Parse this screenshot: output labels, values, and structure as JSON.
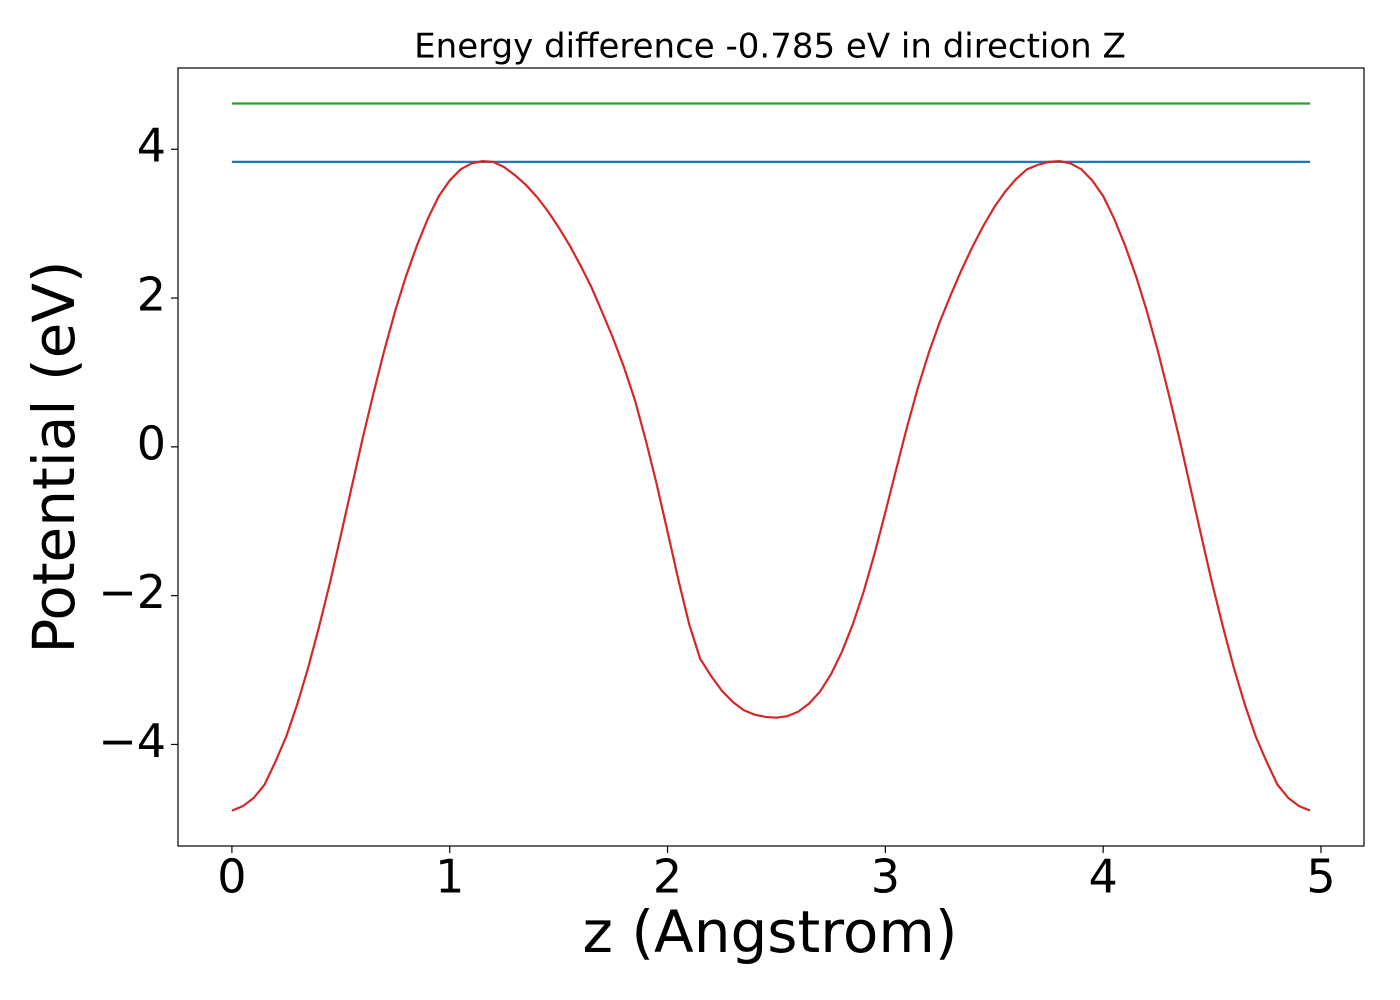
{
  "chart_data": {
    "type": "line",
    "title": "Energy difference -0.785 eV in direction Z",
    "xlabel": "z (Angstrom)",
    "ylabel": "Potential (eV)",
    "xlim": [
      -0.2475,
      5.1975
    ],
    "ylim": [
      -5.365,
      5.092
    ],
    "xticks": [
      0,
      1,
      2,
      3,
      4,
      5
    ],
    "yticks": [
      {
        "value": -4,
        "label": "−4"
      },
      {
        "value": -2,
        "label": "−2"
      },
      0,
      2,
      4
    ],
    "series": [
      {
        "color": "#2ca02c",
        "x": [
          0,
          4.95
        ],
        "values": [
          4.615,
          4.615
        ]
      },
      {
        "color": "#1f77b4",
        "x": [
          0,
          4.95
        ],
        "values": [
          3.83,
          3.83
        ]
      },
      {
        "color": "#d62728",
        "x": [
          0,
          0.05,
          0.1,
          0.15,
          0.2,
          0.25,
          0.3,
          0.35,
          0.4,
          0.45,
          0.5,
          0.55,
          0.6,
          0.65,
          0.7,
          0.75,
          0.8,
          0.85,
          0.9,
          0.95,
          1,
          1.05,
          1.1,
          1.15,
          1.2,
          1.25,
          1.3,
          1.35,
          1.4,
          1.45,
          1.5,
          1.55,
          1.6,
          1.65,
          1.7,
          1.75,
          1.8,
          1.85,
          1.9,
          1.95,
          2,
          2.05,
          2.1,
          2.15,
          2.2,
          2.25,
          2.3,
          2.35,
          2.4,
          2.45,
          2.5,
          2.55,
          2.6,
          2.65,
          2.7,
          2.75,
          2.8,
          2.85,
          2.9,
          2.95,
          3,
          3.05,
          3.1,
          3.15,
          3.2,
          3.25,
          3.3,
          3.35,
          3.4,
          3.45,
          3.5,
          3.55,
          3.6,
          3.65,
          3.7,
          3.75,
          3.8,
          3.85,
          3.9,
          3.95,
          4,
          4.05,
          4.1,
          4.15,
          4.2,
          4.25,
          4.3,
          4.35,
          4.4,
          4.45,
          4.5,
          4.55,
          4.6,
          4.65,
          4.7,
          4.75,
          4.8,
          4.85,
          4.9,
          4.95
        ],
        "values": [
          -4.89,
          -4.83,
          -4.72,
          -4.54,
          -4.23,
          -3.89,
          -3.46,
          -2.97,
          -2.42,
          -1.83,
          -1.19,
          -0.54,
          0.11,
          0.72,
          1.3,
          1.83,
          2.3,
          2.71,
          3.07,
          3.37,
          3.58,
          3.73,
          3.81,
          3.84,
          3.83,
          3.76,
          3.65,
          3.52,
          3.36,
          3.17,
          2.95,
          2.71,
          2.44,
          2.15,
          1.81,
          1.46,
          1.07,
          0.63,
          0.09,
          -0.5,
          -1.14,
          -1.79,
          -2.39,
          -2.85,
          -3.08,
          -3.28,
          -3.43,
          -3.54,
          -3.6,
          -3.63,
          -3.64,
          -3.62,
          -3.56,
          -3.45,
          -3.29,
          -3.06,
          -2.76,
          -2.39,
          -1.95,
          -1.44,
          -0.88,
          -0.3,
          0.27,
          0.8,
          1.27,
          1.68,
          2.04,
          2.38,
          2.69,
          2.97,
          3.22,
          3.43,
          3.6,
          3.73,
          3.79,
          3.83,
          3.84,
          3.81,
          3.73,
          3.58,
          3.37,
          3.07,
          2.71,
          2.3,
          1.83,
          1.3,
          0.72,
          0.11,
          -0.54,
          -1.19,
          -1.83,
          -2.42,
          -2.97,
          -3.46,
          -3.89,
          -4.23,
          -4.54,
          -4.72,
          -4.83,
          -4.89
        ]
      }
    ]
  }
}
